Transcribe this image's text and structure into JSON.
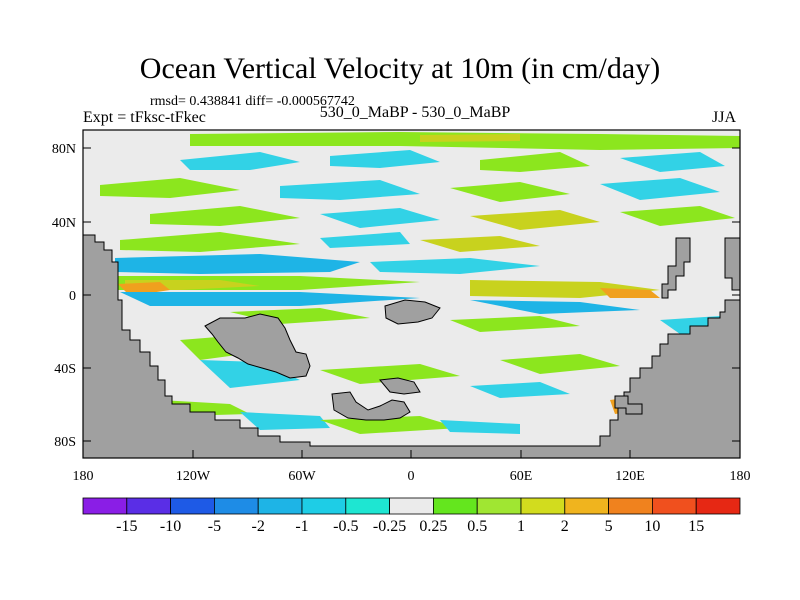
{
  "map": {
    "title": "Ocean Vertical Velocity at 10m (in cm/day)",
    "stats": "rmsd= 0.438841 diff= -0.000567742",
    "experiment": "Expt = tFksc-tFkec",
    "center_label": "530_0_MaBP - 530_0_MaBP",
    "season": "JJA",
    "lat_ticks": [
      "80N",
      "40N",
      "0",
      "40S",
      "80S"
    ],
    "lon_ticks": [
      "180",
      "120W",
      "60W",
      "0",
      "60E",
      "120E",
      "180"
    ],
    "colorbar": {
      "labels": [
        "-15",
        "-10",
        "-5",
        "-2",
        "-1",
        "-0.5",
        "-0.25",
        "0.25",
        "0.5",
        "1",
        "2",
        "5",
        "10",
        "15"
      ],
      "colors": [
        "#8a1ee6",
        "#5a2ee6",
        "#1e5ae6",
        "#1e8ce6",
        "#1eb4e6",
        "#1ecde6",
        "#1ee6d2",
        "#ebebeb",
        "#64e61e",
        "#a0e632",
        "#d2dc1e",
        "#f0b41e",
        "#f0821e",
        "#f0501e",
        "#e62814"
      ]
    },
    "colors": {
      "land": "#a0a0a0",
      "ocean_neutral": "#ebebeb",
      "upwelling_weak": "#8ce61e",
      "upwelling_mid": "#c8d21e",
      "upwelling_strong": "#f0a01e",
      "downwelling_weak": "#32d2e6",
      "downwelling_mid": "#1eb4e6"
    }
  }
}
